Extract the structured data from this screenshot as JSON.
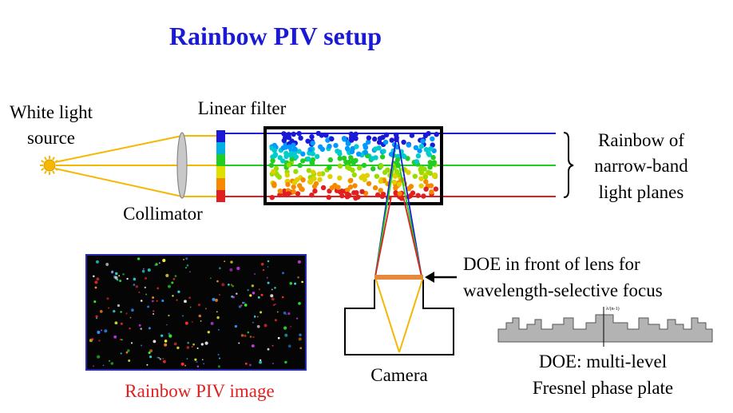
{
  "title": "Rainbow PIV setup",
  "labels": {
    "white_light_source_1": "White light",
    "white_light_source_2": "source",
    "linear_filter": "Linear filter",
    "collimator": "Collimator",
    "rainbow_1": "Rainbow of",
    "rainbow_2": "narrow-band",
    "rainbow_3": "light planes",
    "doe_note_1": "DOE in front of lens for",
    "doe_note_2": "wavelength-selective focus",
    "camera": "Camera",
    "doe_plate_1": "DOE: multi-level",
    "doe_plate_2": "Fresnel phase plate",
    "piv_image": "Rainbow PIV image",
    "lambda_tick": "λ/(n-1)"
  },
  "colors": {
    "title": "#1a1ad6",
    "piv_label": "#e02020",
    "beam_blue": "#1a1ad6",
    "beam_green": "#22cc22",
    "beam_red": "#e02020",
    "fan": "#f5b800",
    "sun": "#f5b800",
    "doe_bar": "#e8883a"
  },
  "filter_colors": [
    "#1a1ad6",
    "#00b0e0",
    "#22cc22",
    "#e0e000",
    "#f58a00",
    "#e02020"
  ],
  "particle_colors": [
    "#1a1ad6",
    "#0099ff",
    "#00cccc",
    "#22cc22",
    "#99dd00",
    "#e0d000",
    "#f58a00",
    "#e02020"
  ]
}
